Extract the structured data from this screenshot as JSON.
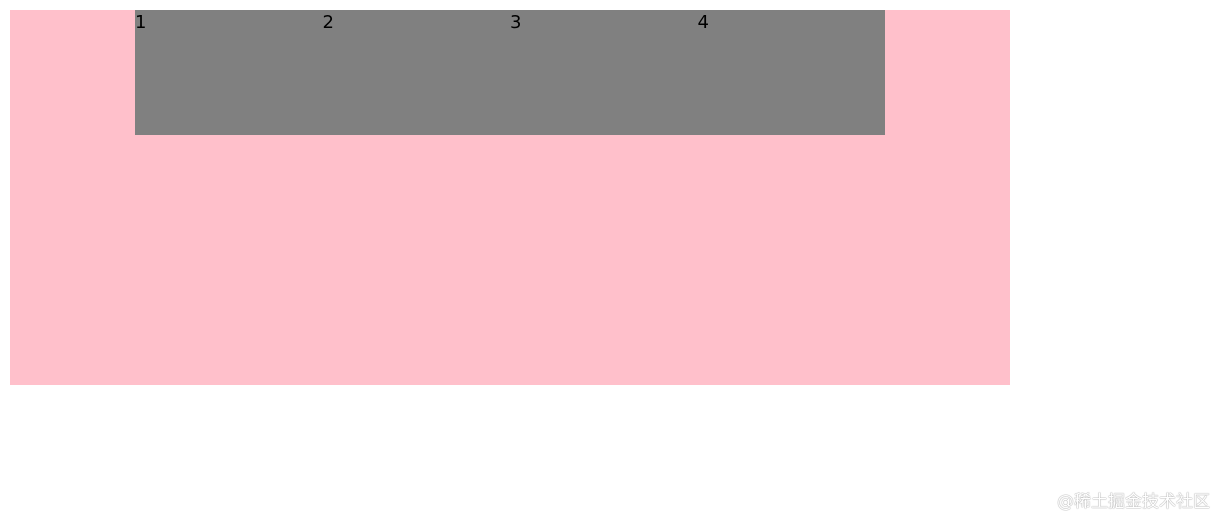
{
  "items": [
    "1",
    "2",
    "3",
    "4"
  ],
  "colors": {
    "outer_background": "#ffc0cb",
    "inner_background": "#808080"
  },
  "watermark": "@稀土掘金技术社区"
}
